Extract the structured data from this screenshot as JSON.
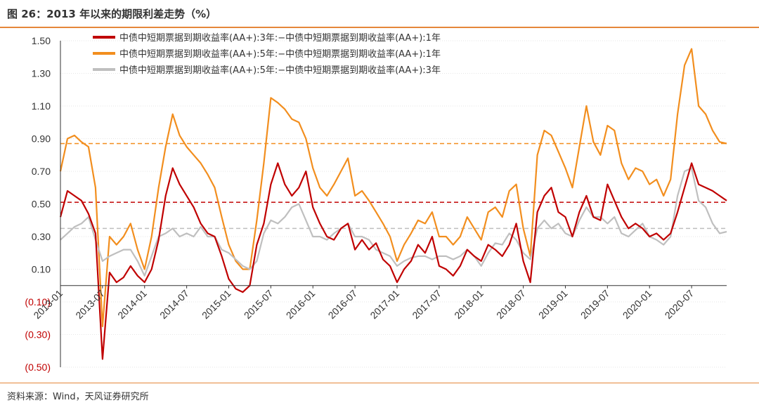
{
  "title": "图 26：2013 年以来的期限利差走势（%）",
  "source": "资料来源：Wind，天风证券研究所",
  "colors": {
    "s1": "#c00000",
    "s2": "#f28e1e",
    "s3": "#bfbfbf",
    "negative": "#c00000",
    "axis": "#333333",
    "accent": "#e5873a"
  },
  "chart_data": {
    "type": "line",
    "xlabel": "",
    "ylabel": "",
    "ylim": [
      -0.5,
      1.5
    ],
    "yticks": [
      1.5,
      1.3,
      1.1,
      0.9,
      0.7,
      0.5,
      0.3,
      0.1,
      -0.1,
      -0.3,
      -0.5
    ],
    "ytick_labels": [
      "1.50",
      "1.30",
      "1.10",
      "0.90",
      "0.70",
      "0.50",
      "0.30",
      "0.10",
      "(0.10)",
      "(0.30)",
      "(0.50)"
    ],
    "xticks": [
      "2013-01",
      "2013-07",
      "2014-01",
      "2014-07",
      "2015-01",
      "2015-07",
      "2016-01",
      "2016-07",
      "2017-01",
      "2017-07",
      "2018-01",
      "2018-07",
      "2019-01",
      "2019-07",
      "2020-01",
      "2020-07"
    ],
    "xrange": [
      "2013-01",
      "2020-12"
    ],
    "grid": true,
    "legend_position": "top-left",
    "reference_lines": [
      {
        "series": 1,
        "y": 0.87
      },
      {
        "series": 0,
        "y": 0.51
      },
      {
        "series": 2,
        "y": 0.35
      }
    ],
    "series": [
      {
        "name": "中债中短期票据到期收益率(AA+):3年:−中债中短期票据到期收益率(AA+):1年",
        "x": [
          "2013-01",
          "2013-02",
          "2013-03",
          "2013-04",
          "2013-05",
          "2013-06",
          "2013-07",
          "2013-08",
          "2013-09",
          "2013-10",
          "2013-11",
          "2013-12",
          "2014-01",
          "2014-02",
          "2014-03",
          "2014-04",
          "2014-05",
          "2014-06",
          "2014-07",
          "2014-08",
          "2014-09",
          "2014-10",
          "2014-11",
          "2014-12",
          "2015-01",
          "2015-02",
          "2015-03",
          "2015-04",
          "2015-05",
          "2015-06",
          "2015-07",
          "2015-08",
          "2015-09",
          "2015-10",
          "2015-11",
          "2015-12",
          "2016-01",
          "2016-02",
          "2016-03",
          "2016-04",
          "2016-05",
          "2016-06",
          "2016-07",
          "2016-08",
          "2016-09",
          "2016-10",
          "2016-11",
          "2016-12",
          "2017-01",
          "2017-02",
          "2017-03",
          "2017-04",
          "2017-05",
          "2017-06",
          "2017-07",
          "2017-08",
          "2017-09",
          "2017-10",
          "2017-11",
          "2017-12",
          "2018-01",
          "2018-02",
          "2018-03",
          "2018-04",
          "2018-05",
          "2018-06",
          "2018-07",
          "2018-08",
          "2018-09",
          "2018-10",
          "2018-11",
          "2018-12",
          "2019-01",
          "2019-02",
          "2019-03",
          "2019-04",
          "2019-05",
          "2019-06",
          "2019-07",
          "2019-08",
          "2019-09",
          "2019-10",
          "2019-11",
          "2019-12",
          "2020-01",
          "2020-02",
          "2020-03",
          "2020-04",
          "2020-05",
          "2020-06",
          "2020-07",
          "2020-08",
          "2020-09",
          "2020-10",
          "2020-11",
          "2020-12"
        ],
        "values": [
          0.42,
          0.58,
          0.55,
          0.52,
          0.44,
          0.32,
          -0.45,
          0.08,
          0.02,
          0.05,
          0.12,
          0.06,
          0.02,
          0.1,
          0.28,
          0.55,
          0.72,
          0.62,
          0.55,
          0.48,
          0.38,
          0.32,
          0.3,
          0.18,
          0.04,
          -0.02,
          -0.04,
          0.0,
          0.25,
          0.38,
          0.62,
          0.75,
          0.62,
          0.55,
          0.6,
          0.7,
          0.48,
          0.38,
          0.3,
          0.28,
          0.35,
          0.38,
          0.22,
          0.28,
          0.22,
          0.26,
          0.16,
          0.12,
          0.02,
          0.1,
          0.15,
          0.25,
          0.2,
          0.3,
          0.12,
          0.1,
          0.06,
          0.12,
          0.22,
          0.18,
          0.15,
          0.25,
          0.22,
          0.18,
          0.25,
          0.38,
          0.15,
          0.02,
          0.45,
          0.55,
          0.6,
          0.45,
          0.42,
          0.3,
          0.45,
          0.55,
          0.42,
          0.4,
          0.62,
          0.52,
          0.42,
          0.35,
          0.38,
          0.35,
          0.3,
          0.32,
          0.28,
          0.32,
          0.45,
          0.6,
          0.75,
          0.62,
          0.6,
          0.58,
          0.55,
          0.52
        ]
      },
      {
        "name": "中债中短期票据到期收益率(AA+):5年:−中债中短期票据到期收益率(AA+):1年",
        "x": [
          "2013-01",
          "2013-02",
          "2013-03",
          "2013-04",
          "2013-05",
          "2013-06",
          "2013-07",
          "2013-08",
          "2013-09",
          "2013-10",
          "2013-11",
          "2013-12",
          "2014-01",
          "2014-02",
          "2014-03",
          "2014-04",
          "2014-05",
          "2014-06",
          "2014-07",
          "2014-08",
          "2014-09",
          "2014-10",
          "2014-11",
          "2014-12",
          "2015-01",
          "2015-02",
          "2015-03",
          "2015-04",
          "2015-05",
          "2015-06",
          "2015-07",
          "2015-08",
          "2015-09",
          "2015-10",
          "2015-11",
          "2015-12",
          "2016-01",
          "2016-02",
          "2016-03",
          "2016-04",
          "2016-05",
          "2016-06",
          "2016-07",
          "2016-08",
          "2016-09",
          "2016-10",
          "2016-11",
          "2016-12",
          "2017-01",
          "2017-02",
          "2017-03",
          "2017-04",
          "2017-05",
          "2017-06",
          "2017-07",
          "2017-08",
          "2017-09",
          "2017-10",
          "2017-11",
          "2017-12",
          "2018-01",
          "2018-02",
          "2018-03",
          "2018-04",
          "2018-05",
          "2018-06",
          "2018-07",
          "2018-08",
          "2018-09",
          "2018-10",
          "2018-11",
          "2018-12",
          "2019-01",
          "2019-02",
          "2019-03",
          "2019-04",
          "2019-05",
          "2019-06",
          "2019-07",
          "2019-08",
          "2019-09",
          "2019-10",
          "2019-11",
          "2019-12",
          "2020-01",
          "2020-02",
          "2020-03",
          "2020-04",
          "2020-05",
          "2020-06",
          "2020-07",
          "2020-08",
          "2020-09",
          "2020-10",
          "2020-11",
          "2020-12"
        ],
        "values": [
          0.7,
          0.9,
          0.92,
          0.88,
          0.85,
          0.6,
          -0.25,
          0.3,
          0.25,
          0.3,
          0.38,
          0.22,
          0.1,
          0.3,
          0.6,
          0.85,
          1.05,
          0.92,
          0.85,
          0.8,
          0.75,
          0.68,
          0.6,
          0.42,
          0.25,
          0.15,
          0.1,
          0.1,
          0.4,
          0.75,
          1.15,
          1.12,
          1.08,
          1.02,
          1.0,
          0.9,
          0.72,
          0.6,
          0.55,
          0.62,
          0.7,
          0.78,
          0.55,
          0.58,
          0.52,
          0.45,
          0.38,
          0.3,
          0.15,
          0.25,
          0.32,
          0.4,
          0.38,
          0.45,
          0.3,
          0.3,
          0.25,
          0.3,
          0.42,
          0.35,
          0.28,
          0.45,
          0.48,
          0.42,
          0.58,
          0.62,
          0.35,
          0.18,
          0.8,
          0.95,
          0.92,
          0.82,
          0.72,
          0.6,
          0.85,
          1.1,
          0.88,
          0.8,
          0.98,
          0.95,
          0.75,
          0.65,
          0.72,
          0.7,
          0.62,
          0.65,
          0.55,
          0.65,
          1.05,
          1.35,
          1.45,
          1.1,
          1.05,
          0.95,
          0.88,
          0.87
        ]
      },
      {
        "name": "中债中短期票据到期收益率(AA+):5年:−中债中短期票据到期收益率(AA+):3年",
        "x": [
          "2013-01",
          "2013-02",
          "2013-03",
          "2013-04",
          "2013-05",
          "2013-06",
          "2013-07",
          "2013-08",
          "2013-09",
          "2013-10",
          "2013-11",
          "2013-12",
          "2014-01",
          "2014-02",
          "2014-03",
          "2014-04",
          "2014-05",
          "2014-06",
          "2014-07",
          "2014-08",
          "2014-09",
          "2014-10",
          "2014-11",
          "2014-12",
          "2015-01",
          "2015-02",
          "2015-03",
          "2015-04",
          "2015-05",
          "2015-06",
          "2015-07",
          "2015-08",
          "2015-09",
          "2015-10",
          "2015-11",
          "2015-12",
          "2016-01",
          "2016-02",
          "2016-03",
          "2016-04",
          "2016-05",
          "2016-06",
          "2016-07",
          "2016-08",
          "2016-09",
          "2016-10",
          "2016-11",
          "2016-12",
          "2017-01",
          "2017-02",
          "2017-03",
          "2017-04",
          "2017-05",
          "2017-06",
          "2017-07",
          "2017-08",
          "2017-09",
          "2017-10",
          "2017-11",
          "2017-12",
          "2018-01",
          "2018-02",
          "2018-03",
          "2018-04",
          "2018-05",
          "2018-06",
          "2018-07",
          "2018-08",
          "2018-09",
          "2018-10",
          "2018-11",
          "2018-12",
          "2019-01",
          "2019-02",
          "2019-03",
          "2019-04",
          "2019-05",
          "2019-06",
          "2019-07",
          "2019-08",
          "2019-09",
          "2019-10",
          "2019-11",
          "2019-12",
          "2020-01",
          "2020-02",
          "2020-03",
          "2020-04",
          "2020-05",
          "2020-06",
          "2020-07",
          "2020-08",
          "2020-09",
          "2020-10",
          "2020-11",
          "2020-12"
        ],
        "values": [
          0.28,
          0.32,
          0.36,
          0.38,
          0.42,
          0.28,
          0.15,
          0.18,
          0.2,
          0.22,
          0.22,
          0.15,
          0.06,
          0.18,
          0.3,
          0.32,
          0.35,
          0.3,
          0.32,
          0.3,
          0.36,
          0.3,
          0.3,
          0.22,
          0.2,
          0.16,
          0.12,
          0.1,
          0.15,
          0.32,
          0.4,
          0.38,
          0.42,
          0.48,
          0.5,
          0.4,
          0.3,
          0.3,
          0.28,
          0.32,
          0.35,
          0.38,
          0.3,
          0.3,
          0.28,
          0.22,
          0.2,
          0.18,
          0.12,
          0.15,
          0.17,
          0.18,
          0.18,
          0.16,
          0.18,
          0.18,
          0.16,
          0.18,
          0.22,
          0.18,
          0.12,
          0.2,
          0.26,
          0.25,
          0.32,
          0.28,
          0.2,
          0.16,
          0.35,
          0.4,
          0.35,
          0.38,
          0.32,
          0.3,
          0.4,
          0.48,
          0.42,
          0.42,
          0.38,
          0.42,
          0.32,
          0.3,
          0.34,
          0.38,
          0.3,
          0.28,
          0.25,
          0.3,
          0.55,
          0.7,
          0.72,
          0.52,
          0.48,
          0.38,
          0.32,
          0.33
        ]
      }
    ]
  }
}
